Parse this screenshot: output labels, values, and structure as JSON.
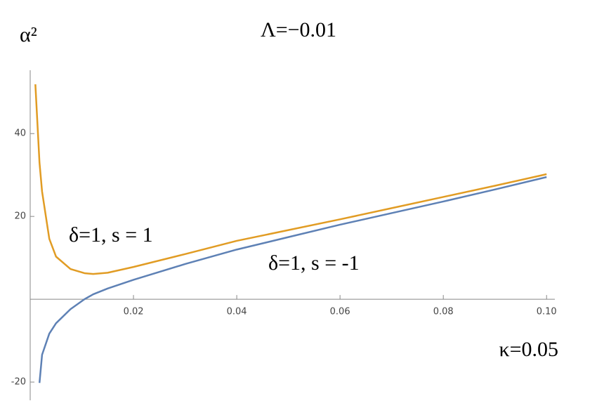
{
  "chart_data": {
    "type": "line",
    "title": "Λ=−0.01",
    "y_label": "α²",
    "annotations": [
      "δ=1, s = 1",
      "δ=1, s = -1",
      "κ=0.05"
    ],
    "x": [
      0.001,
      0.0018,
      0.0023,
      0.0037,
      0.005,
      0.0078,
      0.0105,
      0.0122,
      0.015,
      0.02,
      0.03,
      0.04,
      0.05,
      0.06,
      0.07,
      0.08,
      0.09,
      0.1
    ],
    "series": [
      {
        "name": "δ=1, s = 1",
        "color": "#e19c24",
        "values": [
          51.9,
          33,
          26,
          14.6,
          10.3,
          7.3,
          6.3,
          6.1,
          6.4,
          7.8,
          10.9,
          14.1,
          16.7,
          19.3,
          22,
          24.7,
          27.4,
          30.2
        ]
      },
      {
        "name": "δ=1, s = -1",
        "color": "#5e81b5",
        "values": [
          null,
          -20.2,
          -13.4,
          -8.3,
          -5.8,
          -2.4,
          0,
          1.2,
          2.6,
          4.7,
          8.5,
          12.0,
          15,
          18,
          20.8,
          23.6,
          26.5,
          29.5
        ]
      }
    ],
    "xlim": [
      0,
      0.1016
    ],
    "ylim": [
      -24.4,
      55.3
    ],
    "xticks": [
      0.02,
      0.04,
      0.06,
      0.08,
      {
        "value": 0.1,
        "label": "0.10"
      }
    ],
    "yticks": [
      -20,
      20,
      40
    ],
    "grid": false
  }
}
